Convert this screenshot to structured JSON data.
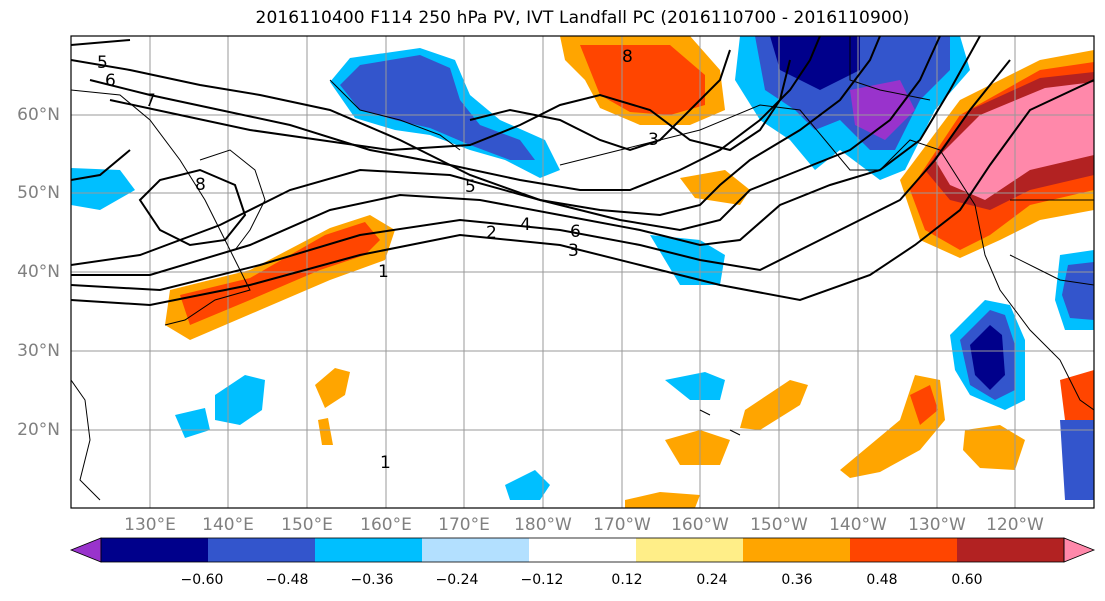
{
  "title": "2016110400 F114 250 hPa PV, IVT Landfall PC (2016110700 - 2016110900)",
  "lat_labels": [
    {
      "text": "60°N",
      "lat": 60
    },
    {
      "text": "50°N",
      "lat": 50
    },
    {
      "text": "40°N",
      "lat": 40
    },
    {
      "text": "30°N",
      "lat": 30
    },
    {
      "text": "20°N",
      "lat": 20
    }
  ],
  "lon_labels": [
    {
      "text": "130°E",
      "lon": 130
    },
    {
      "text": "140°E",
      "lon": 140
    },
    {
      "text": "150°E",
      "lon": 150
    },
    {
      "text": "160°E",
      "lon": 160
    },
    {
      "text": "170°E",
      "lon": 170
    },
    {
      "text": "180°W",
      "lon": 180
    },
    {
      "text": "170°W",
      "lon": 190
    },
    {
      "text": "160°W",
      "lon": 200
    },
    {
      "text": "150°W",
      "lon": 210
    },
    {
      "text": "140°W",
      "lon": 220
    },
    {
      "text": "130°W",
      "lon": 230
    },
    {
      "text": "120°W",
      "lon": 240
    }
  ],
  "contour_labels": [
    "1",
    "2",
    "3",
    "4",
    "5",
    "6",
    "7",
    "8"
  ],
  "colorbar": {
    "colors": [
      "#9933cc",
      "#00008b",
      "#3355cc",
      "#00bfff",
      "#b3e0ff",
      "#ffffff",
      "#ffee88",
      "#ffa500",
      "#ff4500",
      "#b22222",
      "#ff88aa"
    ],
    "tick_labels": [
      "−0.60",
      "−0.48",
      "−0.36",
      "−0.24",
      "−0.12",
      "0.12",
      "0.24",
      "0.36",
      "0.48",
      "0.60"
    ]
  }
}
